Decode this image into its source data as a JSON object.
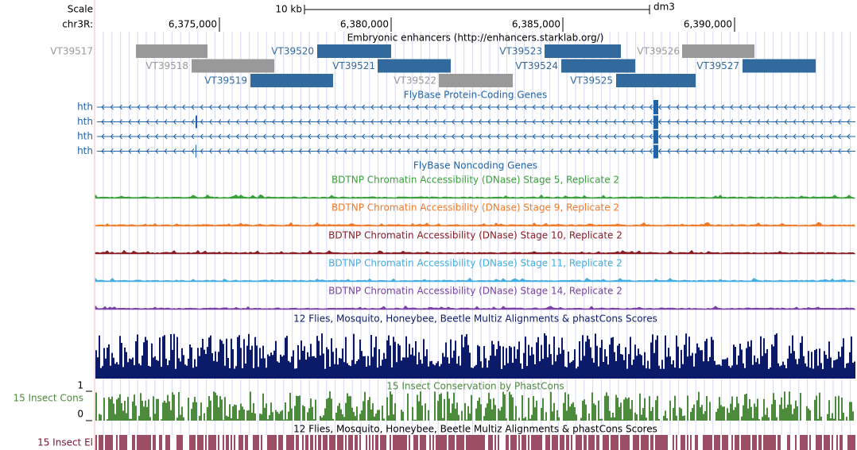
{
  "ruler": {
    "scale_label": "Scale",
    "scale_bar": "10 kb",
    "assembly": "dm3",
    "chrom": "chr3R:",
    "positions": [
      "6,375,000",
      "6,380,000",
      "6,385,000",
      "6,390,000"
    ]
  },
  "tracks": {
    "enhancers": {
      "title": "Embryonic enhancers (http://enhancers.starklab.org/)",
      "items": [
        {
          "name": "VT39517",
          "color": "#999999"
        },
        {
          "name": "VT39518",
          "color": "#999999"
        },
        {
          "name": "VT39519",
          "color": "#336a9e"
        },
        {
          "name": "VT39520",
          "color": "#336a9e"
        },
        {
          "name": "VT39521",
          "color": "#336a9e"
        },
        {
          "name": "VT39522",
          "color": "#999999"
        },
        {
          "name": "VT39523",
          "color": "#336a9e"
        },
        {
          "name": "VT39524",
          "color": "#336a9e"
        },
        {
          "name": "VT39525",
          "color": "#336a9e"
        },
        {
          "name": "VT39526",
          "color": "#999999"
        },
        {
          "name": "VT39527",
          "color": "#336a9e"
        }
      ]
    },
    "protein_coding": {
      "title": "FlyBase Protein-Coding Genes",
      "genes": [
        "hth",
        "hth",
        "hth",
        "hth"
      ],
      "color": "#1f64a8"
    },
    "noncoding": {
      "title": "FlyBase Noncoding Genes",
      "color": "#1f64a8"
    },
    "dnase": [
      {
        "title": "BDTNP Chromatin Accessibility (DNase) Stage 5, Replicate 2",
        "color": "#3aa03a"
      },
      {
        "title": "BDTNP Chromatin Accessibility (DNase) Stage 9, Replicate 2",
        "color": "#f07a28"
      },
      {
        "title": "BDTNP Chromatin Accessibility (DNase) Stage 10, Replicate 2",
        "color": "#8c1c24"
      },
      {
        "title": "BDTNP Chromatin Accessibility (DNase) Stage 11, Replicate 2",
        "color": "#44aede"
      },
      {
        "title": "BDTNP Chromatin Accessibility (DNase) Stage 14, Replicate 2",
        "color": "#7a42a6"
      }
    ],
    "multiz": {
      "title": "12 Flies, Mosquito, Honeybee, Beetle Multiz Alignments & phastCons Scores",
      "color": "#0c1a6a"
    },
    "phastcons": {
      "title": "15 Insect Conservation by PhastCons",
      "label": "15 Insect Cons",
      "max": 1,
      "min": 0,
      "color": "#4c8a3c"
    },
    "elements": {
      "title": "12 Flies, Mosquito, Honeybee, Beetle Multiz Alignments & phastCons Scores",
      "label": "15 Insect El",
      "color": "#7a1232"
    }
  }
}
